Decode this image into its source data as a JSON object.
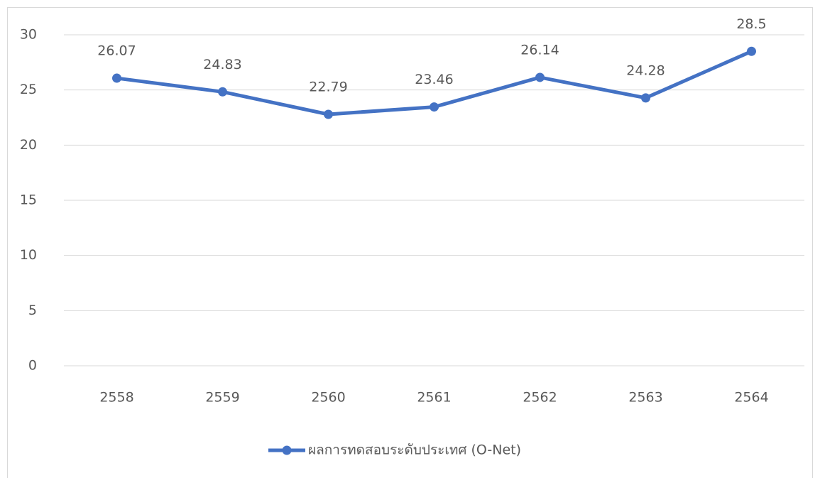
{
  "chart_data": {
    "type": "line",
    "categories": [
      "2558",
      "2559",
      "2560",
      "2561",
      "2562",
      "2563",
      "2564"
    ],
    "series": [
      {
        "name": "ผลการทดสอบระดับประเทศ (O-Net)",
        "color": "#4472c4",
        "values": [
          26.07,
          24.83,
          22.79,
          23.46,
          26.14,
          24.28,
          28.5
        ]
      }
    ],
    "ylim": [
      0,
      30
    ],
    "yticks": [
      0,
      5,
      10,
      15,
      20,
      25,
      30
    ],
    "grid": true,
    "legend": "bottom"
  }
}
